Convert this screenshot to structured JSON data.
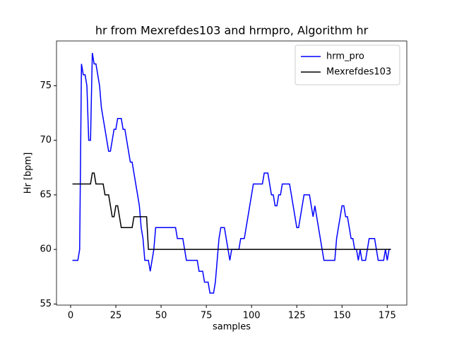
{
  "chart_data": {
    "type": "line",
    "title": "hr from Mexrefdes103 and hrmpro, Algorithm hr",
    "xlabel": "samples",
    "ylabel": "Hr [bpm]",
    "x": [
      1,
      2,
      3,
      4,
      5,
      6,
      7,
      8,
      9,
      10,
      11,
      12,
      13,
      14,
      15,
      16,
      17,
      18,
      19,
      20,
      21,
      22,
      23,
      24,
      25,
      26,
      27,
      28,
      29,
      30,
      31,
      32,
      33,
      34,
      35,
      36,
      37,
      38,
      39,
      40,
      41,
      42,
      43,
      44,
      45,
      46,
      47,
      48,
      49,
      50,
      51,
      52,
      53,
      54,
      55,
      56,
      57,
      58,
      59,
      60,
      61,
      62,
      63,
      64,
      65,
      66,
      67,
      68,
      69,
      70,
      71,
      72,
      73,
      74,
      75,
      76,
      77,
      78,
      79,
      80,
      81,
      82,
      83,
      84,
      85,
      86,
      87,
      88,
      89,
      90,
      91,
      92,
      93,
      94,
      95,
      96,
      97,
      98,
      99,
      100,
      101,
      102,
      103,
      104,
      105,
      106,
      107,
      108,
      109,
      110,
      111,
      112,
      113,
      114,
      115,
      116,
      117,
      118,
      119,
      120,
      121,
      122,
      123,
      124,
      125,
      126,
      127,
      128,
      129,
      130,
      131,
      132,
      133,
      134,
      135,
      136,
      137,
      138,
      139,
      140,
      141,
      142,
      143,
      144,
      145,
      146,
      147,
      148,
      149,
      150,
      151,
      152,
      153,
      154,
      155,
      156,
      157,
      158,
      159,
      160,
      161,
      162,
      163,
      164,
      165,
      166,
      167,
      168,
      169,
      170,
      171,
      172,
      173,
      174,
      175,
      176,
      177
    ],
    "series": [
      {
        "name": "hrm_pro",
        "color": "#0000ff",
        "values": [
          59,
          59,
          59,
          59,
          60,
          77,
          76,
          76,
          75,
          70,
          70,
          78,
          77,
          77,
          76,
          75,
          73,
          72,
          71,
          70,
          69,
          69,
          70,
          71,
          71,
          72,
          72,
          72,
          71,
          71,
          70,
          69,
          68,
          68,
          67,
          66,
          65,
          64,
          62,
          61,
          59,
          59,
          59,
          58,
          59,
          60,
          62,
          62,
          62,
          62,
          62,
          62,
          62,
          62,
          62,
          62,
          62,
          62,
          61,
          61,
          61,
          61,
          60,
          59,
          59,
          59,
          59,
          59,
          59,
          59,
          58,
          58,
          58,
          57,
          57,
          57,
          56,
          56,
          56,
          57,
          59,
          61,
          62,
          62,
          62,
          61,
          60,
          59,
          60,
          60,
          60,
          60,
          60,
          61,
          61,
          61,
          62,
          63,
          64,
          65,
          66,
          66,
          66,
          66,
          66,
          66,
          67,
          67,
          67,
          66,
          65,
          65,
          64,
          64,
          65,
          65,
          66,
          66,
          66,
          66,
          66,
          65,
          64,
          63,
          62,
          62,
          63,
          64,
          65,
          65,
          65,
          65,
          64,
          63,
          64,
          63,
          62,
          61,
          60,
          59,
          59,
          59,
          59,
          59,
          59,
          59,
          61,
          62,
          63,
          64,
          64,
          63,
          63,
          62,
          61,
          61,
          60,
          60,
          59,
          60,
          59,
          59,
          59,
          60,
          61,
          61,
          61,
          61,
          60,
          59,
          59,
          59,
          59,
          60,
          59,
          60,
          60
        ]
      },
      {
        "name": "Mexrefdes103",
        "color": "#000000",
        "values": [
          66,
          66,
          66,
          66,
          66,
          66,
          66,
          66,
          66,
          66,
          66,
          67,
          67,
          66,
          66,
          66,
          66,
          66,
          65,
          65,
          65,
          64,
          63,
          63,
          64,
          64,
          63,
          62,
          62,
          62,
          62,
          62,
          62,
          62,
          63,
          63,
          63,
          63,
          63,
          63,
          63,
          63,
          60,
          60,
          60,
          60,
          60,
          60,
          60,
          60,
          60,
          60,
          60,
          60,
          60,
          60,
          60,
          60,
          60,
          60,
          60,
          60,
          60,
          60,
          60,
          60,
          60,
          60,
          60,
          60,
          60,
          60,
          60,
          60,
          60,
          60,
          60,
          60,
          60,
          60,
          60,
          60,
          60,
          60,
          60,
          60,
          60,
          60,
          60,
          60,
          60,
          60,
          60,
          60,
          60,
          60,
          60,
          60,
          60,
          60,
          60,
          60,
          60,
          60,
          60,
          60,
          60,
          60,
          60,
          60,
          60,
          60,
          60,
          60,
          60,
          60,
          60,
          60,
          60,
          60,
          60,
          60,
          60,
          60,
          60,
          60,
          60,
          60,
          60,
          60,
          60,
          60,
          60,
          60,
          60,
          60,
          60,
          60,
          60,
          60,
          60,
          60,
          60,
          60,
          60,
          60,
          60,
          60,
          60,
          60,
          60,
          60,
          60,
          60,
          60,
          60,
          60,
          60,
          60,
          60,
          60,
          60,
          60,
          60,
          60,
          60,
          60,
          60,
          60,
          60,
          60,
          60,
          60,
          60,
          60,
          60,
          60
        ]
      }
    ],
    "xlim": [
      -7.8,
      185.8
    ],
    "xticks": [
      0,
      25,
      50,
      75,
      100,
      125,
      150,
      175
    ],
    "ylim": [
      54.9,
      79.1
    ],
    "yticks": [
      55,
      60,
      65,
      70,
      75
    ],
    "grid": false,
    "legend": "upper right"
  }
}
